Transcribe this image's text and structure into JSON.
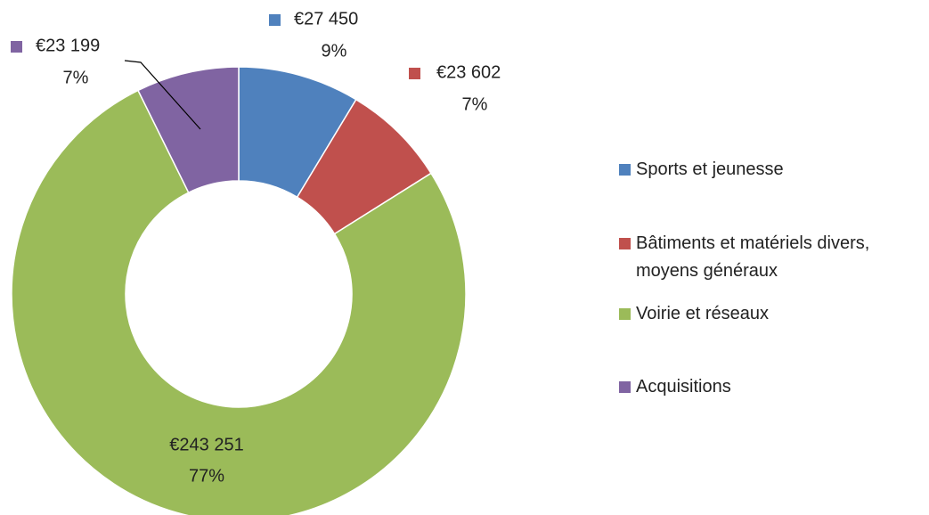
{
  "chart_data": {
    "type": "pie",
    "categories": [
      "Sports et jeunesse",
      "Bâtiments et matériels divers, moyens généraux",
      "Voirie et réseaux",
      "Acquisitions"
    ],
    "values": [
      27450,
      23602,
      243251,
      23199
    ],
    "value_labels": [
      "€27 450",
      "€23 602",
      "€243 251",
      "€23 199"
    ],
    "percent_labels": [
      "9%",
      "7%",
      "77%",
      "7%"
    ],
    "colors": [
      "#4f81bd",
      "#c0504d",
      "#9bbb59",
      "#8064a2"
    ],
    "donut": true,
    "legend": "right"
  }
}
